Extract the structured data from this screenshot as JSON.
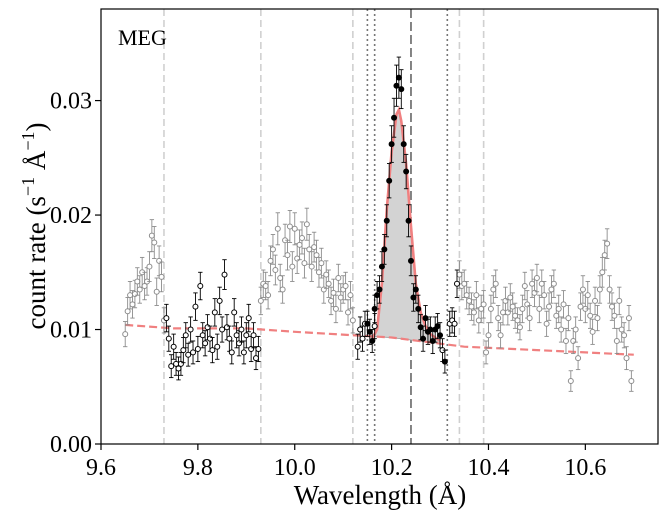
{
  "chart_data": {
    "type": "scatter",
    "panel_label": "MEG",
    "xlabel": "Wavelength (Å)",
    "ylabel": {
      "base": "count rate (s",
      "exp1": "−1",
      "mid": " Å",
      "exp2": "−1",
      "end": ")"
    },
    "xlim": [
      9.6,
      10.75
    ],
    "ylim": [
      0.0,
      0.038
    ],
    "xticks": [
      9.6,
      9.8,
      10.0,
      10.2,
      10.4,
      10.6
    ],
    "xtick_labels": [
      "9.6",
      "9.8",
      "10.0",
      "10.2",
      "10.4",
      "10.6"
    ],
    "yticks": [
      0.0,
      0.01,
      0.02,
      0.03
    ],
    "ytick_labels": [
      "0.00",
      "0.01",
      "0.02",
      "0.03"
    ],
    "colors": {
      "excluded": "#8c8c8c",
      "fitted": "#000000",
      "model": "#f08080",
      "line_fill": "#d3d3d3",
      "region": "#d0d0d0",
      "center": "#777777",
      "window": "#777777"
    },
    "region_lines": [
      9.73,
      9.93,
      10.12,
      10.34,
      10.39
    ],
    "window_lines": [
      10.15,
      10.165,
      10.315
    ],
    "center_line": 10.24,
    "model_continuum": [
      [
        9.65,
        0.0104
      ],
      [
        9.75,
        0.0101
      ],
      [
        9.9,
        0.0101
      ],
      [
        10.0,
        0.0098
      ],
      [
        10.2,
        0.0093
      ],
      [
        10.35,
        0.0085
      ],
      [
        10.5,
        0.0082
      ],
      [
        10.6,
        0.008
      ],
      [
        10.7,
        0.0078
      ]
    ],
    "model_line": [
      [
        10.16,
        0.0092
      ],
      [
        10.17,
        0.01
      ],
      [
        10.18,
        0.014
      ],
      [
        10.19,
        0.0205
      ],
      [
        10.2,
        0.0255
      ],
      [
        10.21,
        0.0288
      ],
      [
        10.215,
        0.0292
      ],
      [
        10.22,
        0.0282
      ],
      [
        10.23,
        0.0245
      ],
      [
        10.24,
        0.019
      ],
      [
        10.25,
        0.014
      ],
      [
        10.26,
        0.0115
      ],
      [
        10.27,
        0.0103
      ],
      [
        10.28,
        0.0096
      ],
      [
        10.3,
        0.009
      ]
    ],
    "series": [
      {
        "name": "excluded",
        "marker": "open",
        "points": [
          [
            9.65,
            0.0096,
            0.0011
          ],
          [
            9.655,
            0.0116,
            0.0012
          ],
          [
            9.66,
            0.013,
            0.0012
          ],
          [
            9.665,
            0.0122,
            0.0012
          ],
          [
            9.67,
            0.0131,
            0.0012
          ],
          [
            9.675,
            0.0142,
            0.0012
          ],
          [
            9.68,
            0.0135,
            0.0012
          ],
          [
            9.685,
            0.015,
            0.0013
          ],
          [
            9.69,
            0.0138,
            0.0012
          ],
          [
            9.695,
            0.0142,
            0.0012
          ],
          [
            9.7,
            0.0155,
            0.0013
          ],
          [
            9.705,
            0.0182,
            0.0014
          ],
          [
            9.71,
            0.0176,
            0.0014
          ],
          [
            9.715,
            0.0133,
            0.0012
          ],
          [
            9.72,
            0.016,
            0.0013
          ],
          [
            9.725,
            0.0146,
            0.0013
          ],
          [
            9.73,
            0.0108,
            0.0011
          ],
          [
            9.93,
            0.0125,
            0.0012
          ],
          [
            9.935,
            0.014,
            0.0012
          ],
          [
            9.94,
            0.0138,
            0.0012
          ],
          [
            9.945,
            0.013,
            0.0012
          ],
          [
            9.95,
            0.016,
            0.0013
          ],
          [
            9.955,
            0.017,
            0.0013
          ],
          [
            9.96,
            0.0152,
            0.0013
          ],
          [
            9.965,
            0.0188,
            0.0014
          ],
          [
            9.97,
            0.0145,
            0.0012
          ],
          [
            9.975,
            0.0135,
            0.0012
          ],
          [
            9.98,
            0.0178,
            0.0014
          ],
          [
            9.985,
            0.0165,
            0.0013
          ],
          [
            9.99,
            0.019,
            0.0014
          ],
          [
            9.995,
            0.0155,
            0.0013
          ],
          [
            10.0,
            0.0188,
            0.0014
          ],
          [
            10.005,
            0.0162,
            0.0013
          ],
          [
            10.01,
            0.0174,
            0.0013
          ],
          [
            10.015,
            0.018,
            0.0014
          ],
          [
            10.02,
            0.0158,
            0.0013
          ],
          [
            10.025,
            0.0192,
            0.0014
          ],
          [
            10.03,
            0.017,
            0.0013
          ],
          [
            10.035,
            0.0155,
            0.0013
          ],
          [
            10.04,
            0.0172,
            0.0013
          ],
          [
            10.045,
            0.0165,
            0.0013
          ],
          [
            10.05,
            0.015,
            0.0013
          ],
          [
            10.055,
            0.0158,
            0.0013
          ],
          [
            10.06,
            0.0135,
            0.0012
          ],
          [
            10.065,
            0.0148,
            0.0012
          ],
          [
            10.07,
            0.014,
            0.0012
          ],
          [
            10.075,
            0.0125,
            0.0012
          ],
          [
            10.08,
            0.0132,
            0.0012
          ],
          [
            10.085,
            0.0118,
            0.0012
          ],
          [
            10.09,
            0.0145,
            0.0012
          ],
          [
            10.095,
            0.0128,
            0.0012
          ],
          [
            10.1,
            0.0135,
            0.0012
          ],
          [
            10.105,
            0.0138,
            0.0012
          ],
          [
            10.11,
            0.0115,
            0.0011
          ],
          [
            10.115,
            0.013,
            0.0012
          ],
          [
            10.12,
            0.0108,
            0.0011
          ],
          [
            10.34,
            0.0148,
            0.0012
          ],
          [
            10.345,
            0.0138,
            0.0012
          ],
          [
            10.35,
            0.014,
            0.0012
          ],
          [
            10.355,
            0.013,
            0.0012
          ],
          [
            10.36,
            0.0125,
            0.0012
          ],
          [
            10.365,
            0.012,
            0.0012
          ],
          [
            10.37,
            0.0115,
            0.0011
          ],
          [
            10.375,
            0.013,
            0.0012
          ],
          [
            10.38,
            0.0108,
            0.0011
          ],
          [
            10.385,
            0.0118,
            0.0012
          ],
          [
            10.39,
            0.0122,
            0.0012
          ],
          [
            10.395,
            0.008,
            0.001
          ],
          [
            10.4,
            0.0095,
            0.0011
          ],
          [
            10.405,
            0.0118,
            0.0012
          ],
          [
            10.41,
            0.0135,
            0.0012
          ],
          [
            10.415,
            0.014,
            0.0012
          ],
          [
            10.42,
            0.011,
            0.0011
          ],
          [
            10.425,
            0.0095,
            0.0011
          ],
          [
            10.43,
            0.0115,
            0.0011
          ],
          [
            10.435,
            0.0125,
            0.0012
          ],
          [
            10.44,
            0.0115,
            0.0011
          ],
          [
            10.445,
            0.0128,
            0.0012
          ],
          [
            10.45,
            0.012,
            0.0012
          ],
          [
            10.455,
            0.0112,
            0.0011
          ],
          [
            10.46,
            0.0108,
            0.0011
          ],
          [
            10.465,
            0.0102,
            0.0011
          ],
          [
            10.47,
            0.0118,
            0.0012
          ],
          [
            10.475,
            0.0138,
            0.0012
          ],
          [
            10.48,
            0.0122,
            0.0012
          ],
          [
            10.485,
            0.011,
            0.0011
          ],
          [
            10.49,
            0.014,
            0.0012
          ],
          [
            10.495,
            0.0132,
            0.0012
          ],
          [
            10.5,
            0.0145,
            0.0012
          ],
          [
            10.505,
            0.0118,
            0.0012
          ],
          [
            10.51,
            0.014,
            0.0012
          ],
          [
            10.515,
            0.013,
            0.0012
          ],
          [
            10.52,
            0.0105,
            0.0011
          ],
          [
            10.525,
            0.012,
            0.0012
          ],
          [
            10.53,
            0.0135,
            0.0012
          ],
          [
            10.535,
            0.014,
            0.0012
          ],
          [
            10.54,
            0.0112,
            0.0011
          ],
          [
            10.545,
            0.0118,
            0.0012
          ],
          [
            10.55,
            0.01,
            0.0011
          ],
          [
            10.555,
            0.0122,
            0.0012
          ],
          [
            10.56,
            0.009,
            0.0011
          ],
          [
            10.565,
            0.011,
            0.0011
          ],
          [
            10.57,
            0.0055,
            0.0009
          ],
          [
            10.575,
            0.009,
            0.0011
          ],
          [
            10.58,
            0.01,
            0.0011
          ],
          [
            10.585,
            0.0075,
            0.001
          ],
          [
            10.59,
            0.012,
            0.0012
          ],
          [
            10.595,
            0.0135,
            0.0012
          ],
          [
            10.6,
            0.0118,
            0.0012
          ],
          [
            10.605,
            0.013,
            0.0012
          ],
          [
            10.61,
            0.0112,
            0.0011
          ],
          [
            10.615,
            0.0098,
            0.0011
          ],
          [
            10.62,
            0.0125,
            0.0012
          ],
          [
            10.625,
            0.011,
            0.0011
          ],
          [
            10.63,
            0.0135,
            0.0012
          ],
          [
            10.635,
            0.015,
            0.0013
          ],
          [
            10.64,
            0.0165,
            0.0013
          ],
          [
            10.645,
            0.0175,
            0.0013
          ],
          [
            10.65,
            0.0135,
            0.0012
          ],
          [
            10.655,
            0.012,
            0.0012
          ],
          [
            10.66,
            0.0112,
            0.0011
          ],
          [
            10.665,
            0.009,
            0.0011
          ],
          [
            10.67,
            0.0125,
            0.0012
          ],
          [
            10.675,
            0.01,
            0.0011
          ],
          [
            10.68,
            0.0095,
            0.0011
          ],
          [
            10.685,
            0.0075,
            0.001
          ],
          [
            10.69,
            0.011,
            0.0011
          ],
          [
            10.695,
            0.0055,
            0.0009
          ]
        ]
      },
      {
        "name": "fitted",
        "marker": "open",
        "points": [
          [
            9.735,
            0.011,
            0.0012
          ],
          [
            9.74,
            0.0092,
            0.0011
          ],
          [
            9.745,
            0.0068,
            0.001
          ],
          [
            9.75,
            0.0085,
            0.0011
          ],
          [
            9.755,
            0.007,
            0.001
          ],
          [
            9.76,
            0.0066,
            0.001
          ],
          [
            9.765,
            0.007,
            0.001
          ],
          [
            9.77,
            0.0082,
            0.0011
          ],
          [
            9.775,
            0.0095,
            0.0011
          ],
          [
            9.78,
            0.0078,
            0.001
          ],
          [
            9.785,
            0.01,
            0.0011
          ],
          [
            9.79,
            0.008,
            0.001
          ],
          [
            9.795,
            0.012,
            0.0012
          ],
          [
            9.8,
            0.0083,
            0.0011
          ],
          [
            9.805,
            0.0138,
            0.0012
          ],
          [
            9.81,
            0.0095,
            0.0011
          ],
          [
            9.815,
            0.0088,
            0.0011
          ],
          [
            9.82,
            0.0102,
            0.0011
          ],
          [
            9.825,
            0.0092,
            0.0011
          ],
          [
            9.83,
            0.0082,
            0.0011
          ],
          [
            9.835,
            0.0115,
            0.0012
          ],
          [
            9.84,
            0.0085,
            0.0011
          ],
          [
            9.845,
            0.0125,
            0.0012
          ],
          [
            9.85,
            0.01,
            0.0011
          ],
          [
            9.855,
            0.0148,
            0.0013
          ],
          [
            9.86,
            0.0102,
            0.0011
          ],
          [
            9.865,
            0.0092,
            0.0011
          ],
          [
            9.87,
            0.008,
            0.001
          ],
          [
            9.875,
            0.0115,
            0.0012
          ],
          [
            9.88,
            0.0095,
            0.0011
          ],
          [
            9.885,
            0.0088,
            0.0011
          ],
          [
            9.89,
            0.01,
            0.0011
          ],
          [
            9.895,
            0.008,
            0.001
          ],
          [
            9.9,
            0.0095,
            0.0011
          ],
          [
            9.905,
            0.011,
            0.0012
          ],
          [
            9.91,
            0.0083,
            0.0011
          ],
          [
            9.915,
            0.0095,
            0.0011
          ],
          [
            9.92,
            0.0075,
            0.001
          ],
          [
            9.925,
            0.0083,
            0.0011
          ],
          [
            10.13,
            0.0085,
            0.0011
          ],
          [
            10.135,
            0.01,
            0.0011
          ],
          [
            10.14,
            0.0092,
            0.0011
          ],
          [
            10.145,
            0.0105,
            0.0011
          ],
          [
            10.165,
            0.0103,
            0.0011
          ],
          [
            10.305,
            0.0082,
            0.001
          ],
          [
            10.32,
            0.0105,
            0.0011
          ],
          [
            10.325,
            0.0108,
            0.0011
          ],
          [
            10.33,
            0.0105,
            0.0011
          ],
          [
            10.335,
            0.014,
            0.0012
          ]
        ]
      },
      {
        "name": "line",
        "marker": "filled",
        "points": [
          [
            10.15,
            0.0105,
            0.0011
          ],
          [
            10.155,
            0.0098,
            0.0011
          ],
          [
            10.16,
            0.009,
            0.001
          ],
          [
            10.165,
            0.0118,
            0.0012
          ],
          [
            10.17,
            0.013,
            0.0012
          ],
          [
            10.175,
            0.0135,
            0.0012
          ],
          [
            10.18,
            0.0155,
            0.0013
          ],
          [
            10.185,
            0.017,
            0.0013
          ],
          [
            10.19,
            0.0195,
            0.0014
          ],
          [
            10.195,
            0.023,
            0.0015
          ],
          [
            10.2,
            0.0262,
            0.0016
          ],
          [
            10.205,
            0.0285,
            0.0017
          ],
          [
            10.21,
            0.0313,
            0.0018
          ],
          [
            10.215,
            0.032,
            0.0018
          ],
          [
            10.22,
            0.031,
            0.0017
          ],
          [
            10.225,
            0.0262,
            0.0016
          ],
          [
            10.23,
            0.0238,
            0.0015
          ],
          [
            10.235,
            0.0195,
            0.0014
          ],
          [
            10.24,
            0.016,
            0.0013
          ],
          [
            10.245,
            0.0128,
            0.0012
          ],
          [
            10.25,
            0.0135,
            0.0012
          ],
          [
            10.255,
            0.0118,
            0.0012
          ],
          [
            10.26,
            0.0102,
            0.0011
          ],
          [
            10.265,
            0.0092,
            0.0011
          ],
          [
            10.27,
            0.011,
            0.0011
          ],
          [
            10.275,
            0.0098,
            0.0011
          ],
          [
            10.28,
            0.01,
            0.0011
          ],
          [
            10.285,
            0.009,
            0.0011
          ],
          [
            10.29,
            0.01,
            0.0011
          ],
          [
            10.295,
            0.0103,
            0.0011
          ],
          [
            10.3,
            0.0095,
            0.0011
          ],
          [
            10.31,
            0.0072,
            0.001
          ]
        ]
      }
    ]
  }
}
